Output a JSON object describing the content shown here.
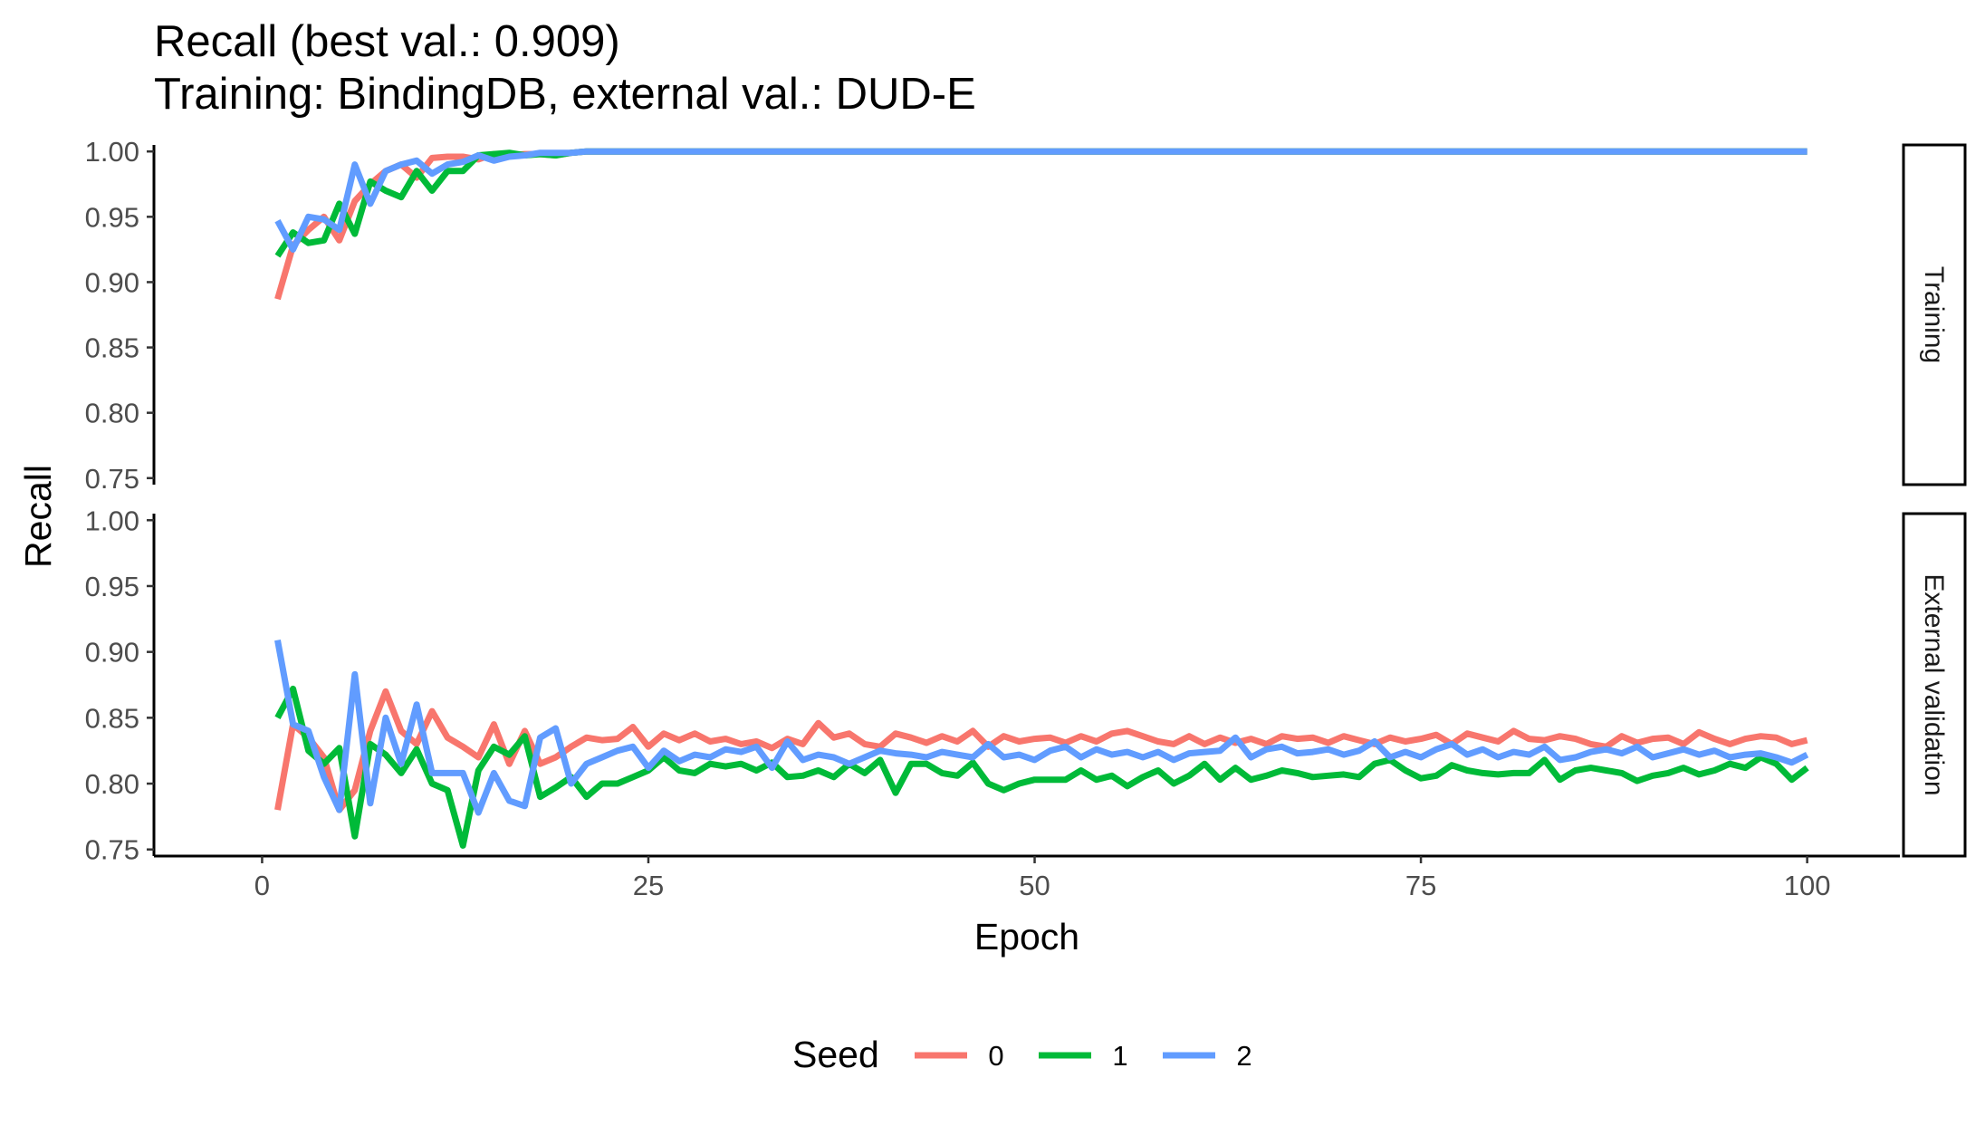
{
  "chart_data": {
    "type": "line",
    "title": "Recall (best val.: 0.909)",
    "subtitle": "Training: BindingDB, external val.: DUD-E",
    "xlabel": "Epoch",
    "ylabel": "Recall",
    "xlim": [
      -7,
      106
    ],
    "xticks": [
      0,
      25,
      50,
      75,
      100
    ],
    "ylim": [
      0.745,
      1.005
    ],
    "yticks": [
      0.75,
      0.8,
      0.85,
      0.9,
      0.95,
      1.0
    ],
    "ytick_labels": [
      "0.75",
      "0.80",
      "0.85",
      "0.90",
      "0.95",
      "1.00"
    ],
    "legend": {
      "title": "Seed",
      "position": "bottom",
      "entries": [
        {
          "label": "0",
          "color": "#F8766D"
        },
        {
          "label": "1",
          "color": "#00BA38"
        },
        {
          "label": "2",
          "color": "#619CFF"
        }
      ]
    },
    "panels": [
      {
        "label": "Training",
        "x_start": 1,
        "series": [
          {
            "name": "0",
            "color": "#F8766D",
            "values": [
              0.887,
              0.928,
              0.94,
              0.95,
              0.932,
              0.962,
              0.975,
              0.985,
              0.99,
              0.98,
              0.995,
              0.996,
              0.996,
              0.994,
              0.998,
              0.997,
              0.998,
              0.998,
              0.997,
              0.999,
              1.0,
              1.0,
              1.0,
              1.0,
              1.0,
              1.0,
              1.0,
              1.0,
              1.0,
              1.0,
              1.0,
              1.0,
              1.0,
              1.0,
              1.0,
              1.0,
              1.0,
              1.0,
              1.0,
              1.0,
              1.0,
              1.0,
              1.0,
              1.0,
              1.0,
              1.0,
              1.0,
              1.0,
              1.0,
              1.0,
              1.0,
              1.0,
              1.0,
              1.0,
              1.0,
              1.0,
              1.0,
              1.0,
              1.0,
              1.0,
              1.0,
              1.0,
              1.0,
              1.0,
              1.0,
              1.0,
              1.0,
              1.0,
              1.0,
              1.0,
              1.0,
              1.0,
              1.0,
              1.0,
              1.0,
              1.0,
              1.0,
              1.0,
              1.0,
              1.0,
              1.0,
              1.0,
              1.0,
              1.0,
              1.0,
              1.0,
              1.0,
              1.0,
              1.0,
              1.0,
              1.0,
              1.0,
              1.0,
              1.0,
              1.0,
              1.0,
              1.0,
              1.0,
              1.0,
              1.0
            ]
          },
          {
            "name": "1",
            "color": "#00BA38",
            "values": [
              0.92,
              0.938,
              0.93,
              0.932,
              0.96,
              0.937,
              0.977,
              0.97,
              0.965,
              0.985,
              0.97,
              0.985,
              0.985,
              0.997,
              0.998,
              0.999,
              0.997,
              0.998,
              0.997,
              0.999,
              1.0,
              1.0,
              1.0,
              1.0,
              1.0,
              1.0,
              1.0,
              1.0,
              1.0,
              1.0,
              1.0,
              1.0,
              1.0,
              1.0,
              1.0,
              1.0,
              1.0,
              1.0,
              1.0,
              1.0,
              1.0,
              1.0,
              1.0,
              1.0,
              1.0,
              1.0,
              1.0,
              1.0,
              1.0,
              1.0,
              1.0,
              1.0,
              1.0,
              1.0,
              1.0,
              1.0,
              1.0,
              1.0,
              1.0,
              1.0,
              1.0,
              1.0,
              1.0,
              1.0,
              1.0,
              1.0,
              1.0,
              1.0,
              1.0,
              1.0,
              1.0,
              1.0,
              1.0,
              1.0,
              1.0,
              1.0,
              1.0,
              1.0,
              1.0,
              1.0,
              1.0,
              1.0,
              1.0,
              1.0,
              1.0,
              1.0,
              1.0,
              1.0,
              1.0,
              1.0,
              1.0,
              1.0,
              1.0,
              1.0,
              1.0,
              1.0,
              1.0,
              1.0,
              1.0,
              1.0
            ]
          },
          {
            "name": "2",
            "color": "#619CFF",
            "values": [
              0.947,
              0.925,
              0.95,
              0.948,
              0.94,
              0.99,
              0.96,
              0.985,
              0.99,
              0.993,
              0.983,
              0.99,
              0.992,
              0.997,
              0.993,
              0.996,
              0.997,
              0.999,
              0.999,
              0.999,
              1.0,
              1.0,
              1.0,
              1.0,
              1.0,
              1.0,
              1.0,
              1.0,
              1.0,
              1.0,
              1.0,
              1.0,
              1.0,
              1.0,
              1.0,
              1.0,
              1.0,
              1.0,
              1.0,
              1.0,
              1.0,
              1.0,
              1.0,
              1.0,
              1.0,
              1.0,
              1.0,
              1.0,
              1.0,
              1.0,
              1.0,
              1.0,
              1.0,
              1.0,
              1.0,
              1.0,
              1.0,
              1.0,
              1.0,
              1.0,
              1.0,
              1.0,
              1.0,
              1.0,
              1.0,
              1.0,
              1.0,
              1.0,
              1.0,
              1.0,
              1.0,
              1.0,
              1.0,
              1.0,
              1.0,
              1.0,
              1.0,
              1.0,
              1.0,
              1.0,
              1.0,
              1.0,
              1.0,
              1.0,
              1.0,
              1.0,
              1.0,
              1.0,
              1.0,
              1.0,
              1.0,
              1.0,
              1.0,
              1.0,
              1.0,
              1.0,
              1.0,
              1.0,
              1.0,
              1.0
            ]
          }
        ]
      },
      {
        "label": "External validation",
        "x_start": 1,
        "series": [
          {
            "name": "0",
            "color": "#F8766D",
            "values": [
              0.78,
              0.845,
              0.835,
              0.82,
              0.78,
              0.795,
              0.84,
              0.87,
              0.84,
              0.83,
              0.855,
              0.835,
              0.828,
              0.82,
              0.845,
              0.815,
              0.84,
              0.815,
              0.82,
              0.828,
              0.835,
              0.833,
              0.834,
              0.843,
              0.828,
              0.838,
              0.833,
              0.838,
              0.832,
              0.834,
              0.83,
              0.832,
              0.827,
              0.834,
              0.83,
              0.846,
              0.835,
              0.838,
              0.83,
              0.828,
              0.838,
              0.835,
              0.831,
              0.836,
              0.832,
              0.84,
              0.828,
              0.836,
              0.832,
              0.834,
              0.835,
              0.831,
              0.836,
              0.832,
              0.838,
              0.84,
              0.836,
              0.832,
              0.83,
              0.836,
              0.83,
              0.835,
              0.831,
              0.834,
              0.83,
              0.836,
              0.834,
              0.835,
              0.831,
              0.836,
              0.833,
              0.83,
              0.835,
              0.832,
              0.834,
              0.837,
              0.83,
              0.838,
              0.835,
              0.832,
              0.84,
              0.834,
              0.833,
              0.836,
              0.834,
              0.83,
              0.828,
              0.836,
              0.831,
              0.834,
              0.835,
              0.83,
              0.839,
              0.834,
              0.83,
              0.834,
              0.836,
              0.835,
              0.83,
              0.833
            ]
          },
          {
            "name": "1",
            "color": "#00BA38",
            "values": [
              0.85,
              0.872,
              0.825,
              0.815,
              0.827,
              0.76,
              0.83,
              0.822,
              0.808,
              0.826,
              0.8,
              0.795,
              0.753,
              0.81,
              0.828,
              0.822,
              0.836,
              0.79,
              0.797,
              0.805,
              0.79,
              0.8,
              0.8,
              0.805,
              0.81,
              0.82,
              0.81,
              0.808,
              0.815,
              0.813,
              0.815,
              0.81,
              0.816,
              0.805,
              0.806,
              0.81,
              0.805,
              0.815,
              0.808,
              0.818,
              0.793,
              0.815,
              0.815,
              0.808,
              0.806,
              0.816,
              0.8,
              0.795,
              0.8,
              0.803,
              0.803,
              0.803,
              0.81,
              0.803,
              0.806,
              0.798,
              0.805,
              0.81,
              0.8,
              0.806,
              0.815,
              0.803,
              0.812,
              0.803,
              0.806,
              0.81,
              0.808,
              0.805,
              0.806,
              0.807,
              0.805,
              0.815,
              0.818,
              0.81,
              0.804,
              0.806,
              0.814,
              0.81,
              0.808,
              0.807,
              0.808,
              0.808,
              0.818,
              0.803,
              0.81,
              0.812,
              0.81,
              0.808,
              0.802,
              0.806,
              0.808,
              0.812,
              0.807,
              0.81,
              0.815,
              0.812,
              0.82,
              0.815,
              0.803,
              0.812
            ]
          },
          {
            "name": "2",
            "color": "#619CFF",
            "values": [
              0.909,
              0.845,
              0.84,
              0.805,
              0.78,
              0.883,
              0.785,
              0.85,
              0.815,
              0.86,
              0.808,
              0.808,
              0.808,
              0.778,
              0.808,
              0.787,
              0.783,
              0.835,
              0.842,
              0.8,
              0.815,
              0.82,
              0.825,
              0.828,
              0.812,
              0.825,
              0.817,
              0.822,
              0.82,
              0.826,
              0.824,
              0.828,
              0.812,
              0.832,
              0.818,
              0.822,
              0.82,
              0.815,
              0.82,
              0.825,
              0.823,
              0.822,
              0.82,
              0.824,
              0.822,
              0.82,
              0.83,
              0.82,
              0.822,
              0.818,
              0.825,
              0.828,
              0.82,
              0.826,
              0.822,
              0.824,
              0.82,
              0.824,
              0.818,
              0.823,
              0.824,
              0.825,
              0.835,
              0.82,
              0.826,
              0.828,
              0.823,
              0.824,
              0.826,
              0.822,
              0.825,
              0.832,
              0.82,
              0.824,
              0.82,
              0.826,
              0.83,
              0.822,
              0.826,
              0.82,
              0.824,
              0.822,
              0.828,
              0.818,
              0.82,
              0.824,
              0.826,
              0.823,
              0.828,
              0.82,
              0.823,
              0.826,
              0.822,
              0.825,
              0.82,
              0.822,
              0.823,
              0.82,
              0.816,
              0.822
            ]
          }
        ]
      }
    ]
  }
}
